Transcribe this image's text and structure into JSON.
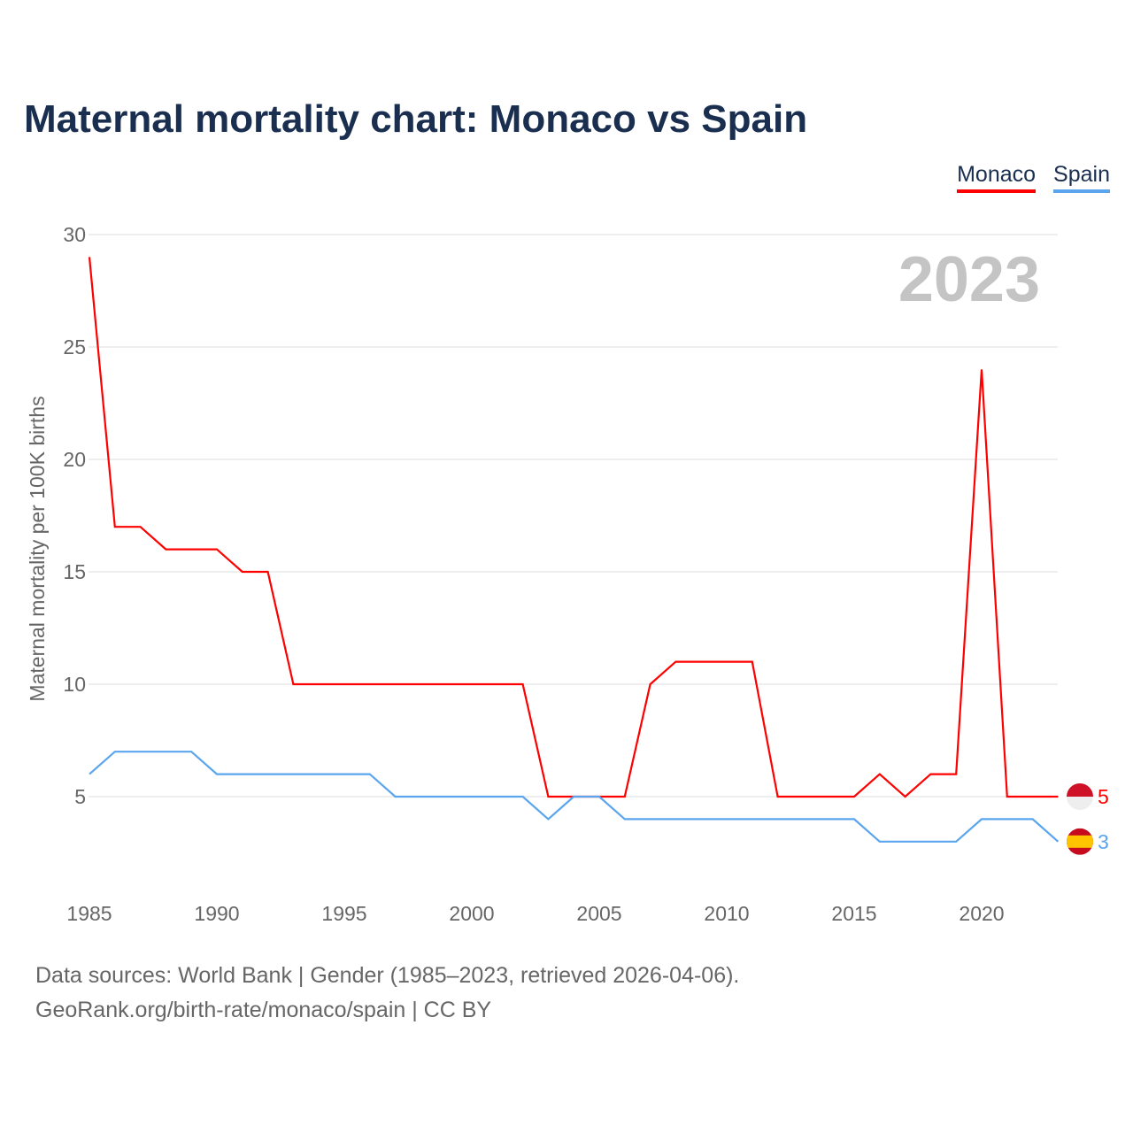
{
  "title": "Maternal mortality chart: Monaco vs Spain",
  "year_label": "2023",
  "footer": {
    "line1": "Data sources: World Bank | Gender (1985–2023, retrieved 2026-04-06).",
    "line2": "GeoRank.org/birth-rate/monaco/spain | CC BY"
  },
  "chart_data": {
    "type": "line",
    "title": "Maternal mortality chart: Monaco vs Spain",
    "xlabel": "",
    "ylabel": "Maternal mortality per 100K births",
    "ylim": [
      0,
      30
    ],
    "xlim": [
      1985,
      2023
    ],
    "yticks": [
      "5",
      "10",
      "15",
      "20",
      "25",
      "30"
    ],
    "xticks": [
      "1985",
      "1990",
      "1995",
      "2000",
      "2005",
      "2010",
      "2015",
      "2020"
    ],
    "legend": "top-right",
    "x": [
      1985,
      1986,
      1987,
      1988,
      1989,
      1990,
      1991,
      1992,
      1993,
      1994,
      1995,
      1996,
      1997,
      1998,
      1999,
      2000,
      2001,
      2002,
      2003,
      2004,
      2005,
      2006,
      2007,
      2008,
      2009,
      2010,
      2011,
      2012,
      2013,
      2014,
      2015,
      2016,
      2017,
      2018,
      2019,
      2020,
      2021,
      2022,
      2023
    ],
    "series": [
      {
        "name": "Monaco",
        "color": "#ff0000",
        "end_label": "5",
        "values": [
          29,
          17,
          17,
          16,
          16,
          16,
          15,
          15,
          10,
          10,
          10,
          10,
          10,
          10,
          10,
          10,
          10,
          10,
          5,
          5,
          5,
          5,
          10,
          11,
          11,
          11,
          11,
          5,
          5,
          5,
          5,
          6,
          5,
          6,
          6,
          24,
          5,
          5,
          5
        ]
      },
      {
        "name": "Spain",
        "color": "#5aa5ee",
        "end_label": "3",
        "values": [
          6,
          7,
          7,
          7,
          7,
          6,
          6,
          6,
          6,
          6,
          6,
          6,
          5,
          5,
          5,
          5,
          5,
          5,
          4,
          5,
          5,
          4,
          4,
          4,
          4,
          4,
          4,
          4,
          4,
          4,
          4,
          3,
          3,
          3,
          3,
          4,
          4,
          4,
          3
        ]
      }
    ]
  }
}
